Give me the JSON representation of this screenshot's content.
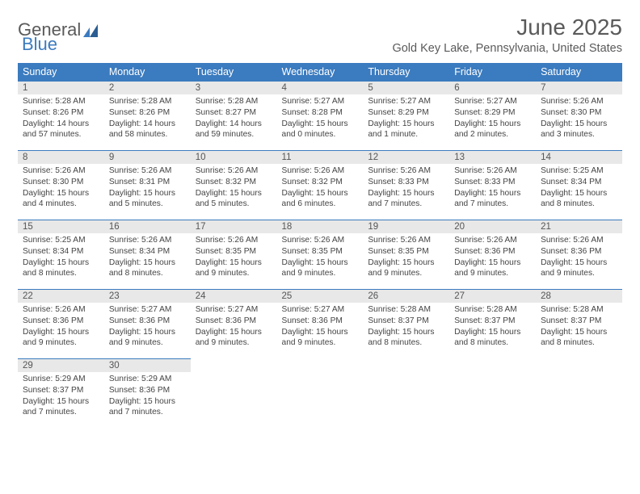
{
  "colors": {
    "header_bg": "#3b7bbf",
    "header_text": "#ffffff",
    "daynum_bg": "#e8e8e8",
    "daynum_border": "#3b7bbf",
    "body_text": "#444444",
    "title_text": "#5a5a5a",
    "page_bg": "#ffffff"
  },
  "logo": {
    "part1": "General",
    "part2": "Blue"
  },
  "title": "June 2025",
  "location": "Gold Key Lake, Pennsylvania, United States",
  "weekdays": [
    "Sunday",
    "Monday",
    "Tuesday",
    "Wednesday",
    "Thursday",
    "Friday",
    "Saturday"
  ],
  "weeks": [
    [
      {
        "n": "1",
        "sr": "Sunrise: 5:28 AM",
        "ss": "Sunset: 8:26 PM",
        "d1": "Daylight: 14 hours",
        "d2": "and 57 minutes."
      },
      {
        "n": "2",
        "sr": "Sunrise: 5:28 AM",
        "ss": "Sunset: 8:26 PM",
        "d1": "Daylight: 14 hours",
        "d2": "and 58 minutes."
      },
      {
        "n": "3",
        "sr": "Sunrise: 5:28 AM",
        "ss": "Sunset: 8:27 PM",
        "d1": "Daylight: 14 hours",
        "d2": "and 59 minutes."
      },
      {
        "n": "4",
        "sr": "Sunrise: 5:27 AM",
        "ss": "Sunset: 8:28 PM",
        "d1": "Daylight: 15 hours",
        "d2": "and 0 minutes."
      },
      {
        "n": "5",
        "sr": "Sunrise: 5:27 AM",
        "ss": "Sunset: 8:29 PM",
        "d1": "Daylight: 15 hours",
        "d2": "and 1 minute."
      },
      {
        "n": "6",
        "sr": "Sunrise: 5:27 AM",
        "ss": "Sunset: 8:29 PM",
        "d1": "Daylight: 15 hours",
        "d2": "and 2 minutes."
      },
      {
        "n": "7",
        "sr": "Sunrise: 5:26 AM",
        "ss": "Sunset: 8:30 PM",
        "d1": "Daylight: 15 hours",
        "d2": "and 3 minutes."
      }
    ],
    [
      {
        "n": "8",
        "sr": "Sunrise: 5:26 AM",
        "ss": "Sunset: 8:30 PM",
        "d1": "Daylight: 15 hours",
        "d2": "and 4 minutes."
      },
      {
        "n": "9",
        "sr": "Sunrise: 5:26 AM",
        "ss": "Sunset: 8:31 PM",
        "d1": "Daylight: 15 hours",
        "d2": "and 5 minutes."
      },
      {
        "n": "10",
        "sr": "Sunrise: 5:26 AM",
        "ss": "Sunset: 8:32 PM",
        "d1": "Daylight: 15 hours",
        "d2": "and 5 minutes."
      },
      {
        "n": "11",
        "sr": "Sunrise: 5:26 AM",
        "ss": "Sunset: 8:32 PM",
        "d1": "Daylight: 15 hours",
        "d2": "and 6 minutes."
      },
      {
        "n": "12",
        "sr": "Sunrise: 5:26 AM",
        "ss": "Sunset: 8:33 PM",
        "d1": "Daylight: 15 hours",
        "d2": "and 7 minutes."
      },
      {
        "n": "13",
        "sr": "Sunrise: 5:26 AM",
        "ss": "Sunset: 8:33 PM",
        "d1": "Daylight: 15 hours",
        "d2": "and 7 minutes."
      },
      {
        "n": "14",
        "sr": "Sunrise: 5:25 AM",
        "ss": "Sunset: 8:34 PM",
        "d1": "Daylight: 15 hours",
        "d2": "and 8 minutes."
      }
    ],
    [
      {
        "n": "15",
        "sr": "Sunrise: 5:25 AM",
        "ss": "Sunset: 8:34 PM",
        "d1": "Daylight: 15 hours",
        "d2": "and 8 minutes."
      },
      {
        "n": "16",
        "sr": "Sunrise: 5:26 AM",
        "ss": "Sunset: 8:34 PM",
        "d1": "Daylight: 15 hours",
        "d2": "and 8 minutes."
      },
      {
        "n": "17",
        "sr": "Sunrise: 5:26 AM",
        "ss": "Sunset: 8:35 PM",
        "d1": "Daylight: 15 hours",
        "d2": "and 9 minutes."
      },
      {
        "n": "18",
        "sr": "Sunrise: 5:26 AM",
        "ss": "Sunset: 8:35 PM",
        "d1": "Daylight: 15 hours",
        "d2": "and 9 minutes."
      },
      {
        "n": "19",
        "sr": "Sunrise: 5:26 AM",
        "ss": "Sunset: 8:35 PM",
        "d1": "Daylight: 15 hours",
        "d2": "and 9 minutes."
      },
      {
        "n": "20",
        "sr": "Sunrise: 5:26 AM",
        "ss": "Sunset: 8:36 PM",
        "d1": "Daylight: 15 hours",
        "d2": "and 9 minutes."
      },
      {
        "n": "21",
        "sr": "Sunrise: 5:26 AM",
        "ss": "Sunset: 8:36 PM",
        "d1": "Daylight: 15 hours",
        "d2": "and 9 minutes."
      }
    ],
    [
      {
        "n": "22",
        "sr": "Sunrise: 5:26 AM",
        "ss": "Sunset: 8:36 PM",
        "d1": "Daylight: 15 hours",
        "d2": "and 9 minutes."
      },
      {
        "n": "23",
        "sr": "Sunrise: 5:27 AM",
        "ss": "Sunset: 8:36 PM",
        "d1": "Daylight: 15 hours",
        "d2": "and 9 minutes."
      },
      {
        "n": "24",
        "sr": "Sunrise: 5:27 AM",
        "ss": "Sunset: 8:36 PM",
        "d1": "Daylight: 15 hours",
        "d2": "and 9 minutes."
      },
      {
        "n": "25",
        "sr": "Sunrise: 5:27 AM",
        "ss": "Sunset: 8:36 PM",
        "d1": "Daylight: 15 hours",
        "d2": "and 9 minutes."
      },
      {
        "n": "26",
        "sr": "Sunrise: 5:28 AM",
        "ss": "Sunset: 8:37 PM",
        "d1": "Daylight: 15 hours",
        "d2": "and 8 minutes."
      },
      {
        "n": "27",
        "sr": "Sunrise: 5:28 AM",
        "ss": "Sunset: 8:37 PM",
        "d1": "Daylight: 15 hours",
        "d2": "and 8 minutes."
      },
      {
        "n": "28",
        "sr": "Sunrise: 5:28 AM",
        "ss": "Sunset: 8:37 PM",
        "d1": "Daylight: 15 hours",
        "d2": "and 8 minutes."
      }
    ],
    [
      {
        "n": "29",
        "sr": "Sunrise: 5:29 AM",
        "ss": "Sunset: 8:37 PM",
        "d1": "Daylight: 15 hours",
        "d2": "and 7 minutes."
      },
      {
        "n": "30",
        "sr": "Sunrise: 5:29 AM",
        "ss": "Sunset: 8:36 PM",
        "d1": "Daylight: 15 hours",
        "d2": "and 7 minutes."
      },
      null,
      null,
      null,
      null,
      null
    ]
  ]
}
